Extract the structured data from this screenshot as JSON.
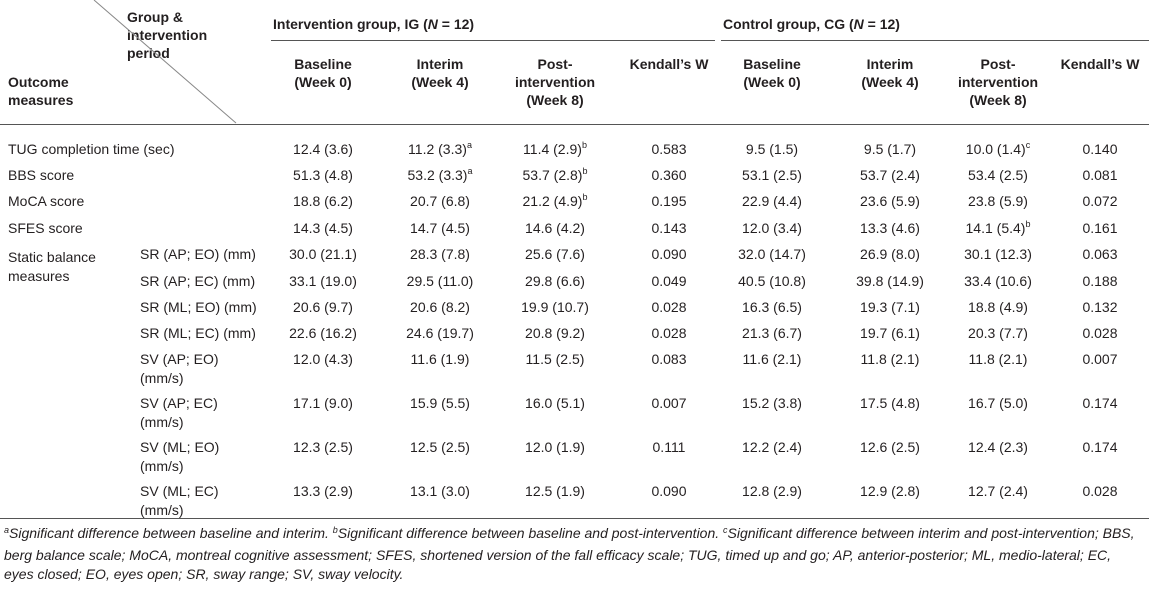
{
  "header": {
    "group_label_1": "Group &",
    "group_label_2": "intervention",
    "group_label_3": "period",
    "outcome_label_1": "Outcome",
    "outcome_label_2": "measures",
    "ig_title_prefix": "Intervention group, IG (",
    "ig_title_n": "N",
    "ig_title_suffix": " = 12)",
    "cg_title_prefix": "Control group, CG (",
    "cg_title_n": "N",
    "cg_title_suffix": " = 12)",
    "ig_cols": [
      {
        "l1": "Baseline",
        "l2": "(Week 0)",
        "l3": ""
      },
      {
        "l1": "Interim",
        "l2": "(Week 4)",
        "l3": ""
      },
      {
        "l1": "Post-",
        "l2": "intervention",
        "l3": "(Week 8)"
      },
      {
        "l1": "Kendall’s W",
        "l2": "",
        "l3": ""
      }
    ],
    "cg_cols": [
      {
        "l1": "Baseline",
        "l2": "(Week 0)",
        "l3": ""
      },
      {
        "l1": "Interim",
        "l2": "(Week 4)",
        "l3": ""
      },
      {
        "l1": "Post-",
        "l2": "intervention",
        "l3": "(Week 8)"
      },
      {
        "l1": "Kendall’s W",
        "l2": "",
        "l3": ""
      }
    ]
  },
  "rows": [
    {
      "label": "TUG completion time (sec)",
      "sub1": "",
      "sub2": "",
      "cells": [
        [
          "12.4 (3.6)",
          ""
        ],
        [
          "11.2 (3.3)",
          "a"
        ],
        [
          "11.4 (2.9)",
          "b"
        ],
        [
          "0.583",
          ""
        ],
        [
          "9.5 (1.5)",
          ""
        ],
        [
          "9.5 (1.7)",
          ""
        ],
        [
          "10.0 (1.4)",
          "c"
        ],
        [
          "0.140",
          ""
        ]
      ]
    },
    {
      "label": "BBS score",
      "sub1": "",
      "sub2": "",
      "cells": [
        [
          "51.3 (4.8)",
          ""
        ],
        [
          "53.2 (3.3)",
          "a"
        ],
        [
          "53.7 (2.8)",
          "b"
        ],
        [
          "0.360",
          ""
        ],
        [
          "53.1 (2.5)",
          ""
        ],
        [
          "53.7 (2.4)",
          ""
        ],
        [
          "53.4 (2.5)",
          ""
        ],
        [
          "0.081",
          ""
        ]
      ]
    },
    {
      "label": "MoCA score",
      "sub1": "",
      "sub2": "",
      "cells": [
        [
          "18.8 (6.2)",
          ""
        ],
        [
          "20.7 (6.8)",
          ""
        ],
        [
          "21.2 (4.9)",
          "b"
        ],
        [
          "0.195",
          ""
        ],
        [
          "22.9 (4.4)",
          ""
        ],
        [
          "23.6 (5.9)",
          ""
        ],
        [
          "23.8 (5.9)",
          ""
        ],
        [
          "0.072",
          ""
        ]
      ]
    },
    {
      "label": "SFES score",
      "sub1": "",
      "sub2": "",
      "cells": [
        [
          "14.3 (4.5)",
          ""
        ],
        [
          "14.7 (4.5)",
          ""
        ],
        [
          "14.6 (4.2)",
          ""
        ],
        [
          "0.143",
          ""
        ],
        [
          "12.0 (3.4)",
          ""
        ],
        [
          "13.3 (4.6)",
          ""
        ],
        [
          "14.1 (5.4)",
          "b"
        ],
        [
          "0.161",
          ""
        ]
      ]
    },
    {
      "label": "",
      "sub1": "SR (AP; EO) (mm)",
      "sub2": "",
      "cells": [
        [
          "30.0 (21.1)",
          ""
        ],
        [
          "28.3 (7.8)",
          ""
        ],
        [
          "25.6 (7.6)",
          ""
        ],
        [
          "0.090",
          ""
        ],
        [
          "32.0 (14.7)",
          ""
        ],
        [
          "26.9 (8.0)",
          ""
        ],
        [
          "30.1 (12.3)",
          ""
        ],
        [
          "0.063",
          ""
        ]
      ]
    },
    {
      "label": "",
      "sub1": "SR (AP; EC) (mm)",
      "sub2": "",
      "cells": [
        [
          "33.1 (19.0)",
          ""
        ],
        [
          "29.5 (11.0)",
          ""
        ],
        [
          "29.8 (6.6)",
          ""
        ],
        [
          "0.049",
          ""
        ],
        [
          "40.5 (10.8)",
          ""
        ],
        [
          "39.8 (14.9)",
          ""
        ],
        [
          "33.4 (10.6)",
          ""
        ],
        [
          "0.188",
          ""
        ]
      ]
    },
    {
      "label": "",
      "sub1": "SR (ML; EO) (mm)",
      "sub2": "",
      "cells": [
        [
          "20.6 (9.7)",
          ""
        ],
        [
          "20.6 (8.2)",
          ""
        ],
        [
          "19.9 (10.7)",
          ""
        ],
        [
          "0.028",
          ""
        ],
        [
          "16.3 (6.5)",
          ""
        ],
        [
          "19.3 (7.1)",
          ""
        ],
        [
          "18.8 (4.9)",
          ""
        ],
        [
          "0.132",
          ""
        ]
      ]
    },
    {
      "label": "",
      "sub1": "SR (ML; EC) (mm)",
      "sub2": "",
      "cells": [
        [
          "22.6 (16.2)",
          ""
        ],
        [
          "24.6 (19.7)",
          ""
        ],
        [
          "20.8 (9.2)",
          ""
        ],
        [
          "0.028",
          ""
        ],
        [
          "21.3 (6.7)",
          ""
        ],
        [
          "19.7 (6.1)",
          ""
        ],
        [
          "20.3 (7.7)",
          ""
        ],
        [
          "0.028",
          ""
        ]
      ]
    },
    {
      "label": "",
      "sub1": "SV (AP; EO)",
      "sub2": "(mm/s)",
      "cells": [
        [
          "12.0 (4.3)",
          ""
        ],
        [
          "11.6 (1.9)",
          ""
        ],
        [
          "11.5 (2.5)",
          ""
        ],
        [
          "0.083",
          ""
        ],
        [
          "11.6 (2.1)",
          ""
        ],
        [
          "11.8 (2.1)",
          ""
        ],
        [
          "11.8 (2.1)",
          ""
        ],
        [
          "0.007",
          ""
        ]
      ]
    },
    {
      "label": "",
      "sub1": "SV (AP; EC)",
      "sub2": "(mm/s)",
      "cells": [
        [
          "17.1 (9.0)",
          ""
        ],
        [
          "15.9 (5.5)",
          ""
        ],
        [
          "16.0 (5.1)",
          ""
        ],
        [
          "0.007",
          ""
        ],
        [
          "15.2 (3.8)",
          ""
        ],
        [
          "17.5 (4.8)",
          ""
        ],
        [
          "16.7 (5.0)",
          ""
        ],
        [
          "0.174",
          ""
        ]
      ]
    },
    {
      "label": "",
      "sub1": "SV (ML; EO)",
      "sub2": "(mm/s)",
      "cells": [
        [
          "12.3 (2.5)",
          ""
        ],
        [
          "12.5 (2.5)",
          ""
        ],
        [
          "12.0 (1.9)",
          ""
        ],
        [
          "0.111",
          ""
        ],
        [
          "12.2 (2.4)",
          ""
        ],
        [
          "12.6 (2.5)",
          ""
        ],
        [
          "12.4 (2.3)",
          ""
        ],
        [
          "0.174",
          ""
        ]
      ]
    },
    {
      "label": "",
      "sub1": "SV (ML; EC)",
      "sub2": "(mm/s)",
      "cells": [
        [
          "13.3 (2.9)",
          ""
        ],
        [
          "13.1 (3.0)",
          ""
        ],
        [
          "12.5 (1.9)",
          ""
        ],
        [
          "0.090",
          ""
        ],
        [
          "12.8 (2.9)",
          ""
        ],
        [
          "12.9 (2.8)",
          ""
        ],
        [
          "12.7 (2.4)",
          ""
        ],
        [
          "0.028",
          ""
        ]
      ]
    }
  ],
  "static_label_1": "Static balance",
  "static_label_2": "measures",
  "footnote": [
    {
      "sup": "a",
      "text": "Significant difference between baseline and interim. "
    },
    {
      "sup": "b",
      "text": "Significant difference between baseline and post-intervention. "
    },
    {
      "sup": "c",
      "text": "Significant difference between interim and post-intervention; BBS, berg balance scale; MoCA, montreal cognitive assessment; SFES, shortened version of the fall efficacy scale; TUG, timed up and go; AP, anterior-posterior; ML, medio-lateral; EC, eyes closed; EO, eyes open; SR, sway range; SV, sway velocity."
    }
  ]
}
